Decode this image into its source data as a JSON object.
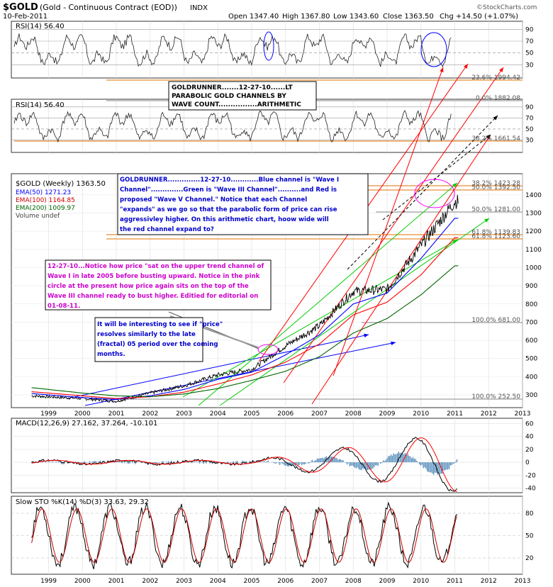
{
  "header": {
    "symbol": "$GOLD",
    "name": "(Gold - Continuous Contract (EOD))",
    "exchange": "INDX",
    "date": "10-Feb-2011",
    "open": "Open 1347.40",
    "high": "High 1367.80",
    "low": "Low 1343.60",
    "close": "Close 1363.50",
    "change": "Chg +14.50 (+1.07%)",
    "watermark": "©StockCharts.com"
  },
  "panels": {
    "rsi_top": {
      "label": "RSI(14) 56.40",
      "ticks": [
        90,
        70,
        50,
        30
      ]
    },
    "rsi_mid": {
      "label": "RSI(14) 56.40",
      "ticks": [
        90,
        70,
        50,
        30
      ]
    },
    "main": {
      "legend": [
        {
          "text": "$GOLD (Weekly) 1363.50",
          "color": "#000000"
        },
        {
          "text": "EMA(50) 1271.23",
          "color": "#0000ff"
        },
        {
          "text": "EMA(100) 1164.85",
          "color": "#ff0000"
        },
        {
          "text": "EMA(200) 1009.97",
          "color": "#006400"
        },
        {
          "text": "Volume undef",
          "color": "#444444"
        }
      ],
      "y_ticks": [
        1400,
        1300,
        1200,
        1100,
        1000,
        900,
        800,
        700,
        600,
        500,
        400,
        300
      ],
      "fib_labels": [
        {
          "text": "23.6% 1994.42",
          "price": 1994.42
        },
        {
          "text": "0.0% 1882.08",
          "price": 1882.08
        },
        {
          "text": "38.2% 1661.54",
          "price": 1661.54
        },
        {
          "text": "38.2% 1423.28",
          "price": 1423.28
        },
        {
          "text": "50.0% 1392.50",
          "price": 1392.5
        },
        {
          "text": "50.0% 1281.00",
          "price": 1281.0
        },
        {
          "text": "61.8% 1139.83",
          "price": 1139.83
        },
        {
          "text": "61.8% 1123.60",
          "price": 1123.6
        },
        {
          "text": "100.0% 681.00",
          "price": 681.0
        },
        {
          "text": "100.0% 252.50",
          "price": 252.5
        }
      ]
    },
    "macd": {
      "label": "MACD(12,26,9) 27.162, 37.264, -10.101",
      "ticks": [
        60,
        40,
        20,
        0,
        -20,
        -40
      ]
    },
    "sto": {
      "label": "Slow STO %K(14) %D(3) 33.63, 29.32",
      "ticks": [
        80,
        50,
        20
      ]
    }
  },
  "x_years": [
    "1999",
    "2000",
    "2001",
    "2002",
    "2003",
    "2004",
    "2005",
    "2006",
    "2007",
    "2008",
    "2009",
    "2010",
    "2011",
    "2012",
    "2013"
  ],
  "annotations": {
    "box1": [
      "GOLDRUNNER.......12-27-10......LT",
      "PARABOLIC GOLD CHANNELS BY",
      "WAVE COUNT................ARITHMETIC"
    ],
    "box2": [
      "GOLDRUNNER..............12-27-10............Blue channel is \"Wave I",
      "Channel\"..............Green is \"Wave III Channel\"..........and Red is",
      "proposed \"Wave V Channel.\"  Notice that each Channel",
      "\"expands\" as we go so that the parabolic form of price can rise",
      "aggressivley higher.  On this arithmetic chart, hoow wide will",
      "the red channel expand to?"
    ],
    "box3": [
      "12-27-10...Notice how price \"sat on the upper trend channel of",
      "Wave I in late 2005 before busting upward.  Notice in the pink",
      "circle at the present how price again sits on the top of the",
      "Wave III channel ready to bust higher. Editied for editorial on",
      "01-08-11."
    ],
    "box4": [
      "It will be interesting to see if \"price\"",
      "resolves similarly to the late",
      "(fractal) 05 period over the coming",
      "months."
    ]
  },
  "colors": {
    "blue_channel": "#0000ff",
    "green_channel": "#00cc00",
    "red_channel": "#ff0000",
    "fib": "#e07000",
    "pink": "#ff00ff",
    "annotation_text": "#cc00cc",
    "macd_hist": "#4682b4"
  },
  "chart_data": {
    "type": "line",
    "title": "$GOLD (Gold - Continuous Contract (EOD)) INDX",
    "x": [
      "1999",
      "2000",
      "2001",
      "2002",
      "2003",
      "2004",
      "2005",
      "2006",
      "2007",
      "2008",
      "2009",
      "2010",
      "2011"
    ],
    "series": [
      {
        "name": "$GOLD (Weekly) 1363.50",
        "values": [
          290,
          280,
          265,
          310,
          350,
          410,
          440,
          570,
          680,
          870,
          880,
          1120,
          1363.5
        ]
      },
      {
        "name": "EMA(50) 1271.23",
        "values": [
          300,
          285,
          275,
          295,
          330,
          385,
          425,
          520,
          630,
          800,
          860,
          1050,
          1271.23
        ]
      },
      {
        "name": "EMA(100) 1164.85",
        "values": [
          310,
          295,
          280,
          290,
          315,
          360,
          410,
          480,
          580,
          740,
          810,
          960,
          1164.85
        ]
      },
      {
        "name": "EMA(200) 1009.97",
        "values": [
          330,
          310,
          295,
          290,
          305,
          335,
          380,
          430,
          510,
          640,
          720,
          850,
          1009.97
        ]
      }
    ],
    "ylim": [
      230,
      1450
    ]
  }
}
